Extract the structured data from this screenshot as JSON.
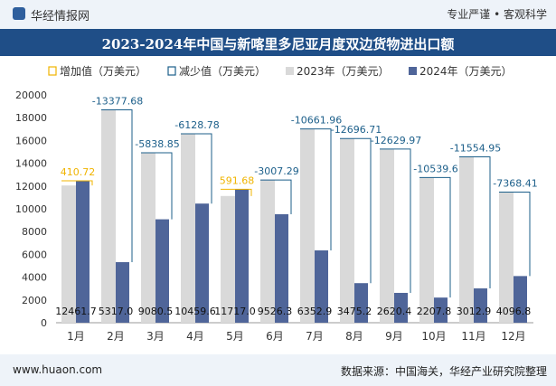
{
  "header": {
    "brand": "华经情报网",
    "tagline": "专业严谨 • 客观科学"
  },
  "footer": {
    "website": "www.huaon.com",
    "source": "数据来源：中国海关，华经产业研究院整理"
  },
  "colors": {
    "bar_2023": "#d9d9d9",
    "bar_2024": "#4f6599",
    "increase": "#f0b400",
    "decrease": "#1c5f8a",
    "title_bg": "#1f4e87"
  },
  "chart_data": {
    "type": "bar",
    "title": "2023-2024年中国与新喀里多尼亚月度双边货物进出口额",
    "xlabel": "",
    "ylabel": "",
    "ylim": [
      0,
      20000
    ],
    "yticks": [
      0,
      2000,
      4000,
      6000,
      8000,
      10000,
      12000,
      14000,
      16000,
      18000,
      20000
    ],
    "legend_position": "top",
    "legend": [
      "增加值（万美元）",
      "减少值（万美元）",
      "2023年（万美元）",
      "2024年（万美元）"
    ],
    "categories": [
      "1月",
      "2月",
      "3月",
      "4月",
      "5月",
      "6月",
      "7月",
      "8月",
      "9月",
      "10月",
      "11月",
      "12月"
    ],
    "series": [
      {
        "name": "2023年（万美元）",
        "values": [
          12051.0,
          18694.7,
          14919.4,
          16588.4,
          11125.4,
          12533.6,
          17014.9,
          16172.0,
          15250.4,
          12747.5,
          14567.9,
          11465.2
        ]
      },
      {
        "name": "2024年（万美元）",
        "values": [
          12461.7,
          5317.0,
          9080.5,
          10459.6,
          11717.0,
          9526.3,
          6352.9,
          3475.2,
          2620.4,
          2207.8,
          3012.9,
          4096.8
        ]
      }
    ],
    "bar_labels_2024": [
      "12461.7",
      "5317.0",
      "9080.5",
      "10459.6",
      "11717.0",
      "9526.3",
      "6352.9",
      "3475.2",
      "2620.4",
      "2207.8",
      "3012.9",
      "4096.8"
    ],
    "changes": [
      410.72,
      -13377.68,
      -5838.85,
      -6128.78,
      591.68,
      -3007.29,
      -10661.96,
      -12696.71,
      -12629.97,
      -10539.6,
      -11554.95,
      -7368.41
    ],
    "change_labels": [
      "410.72",
      "-13377.68",
      "-5838.85",
      "-6128.78",
      "591.68",
      "-3007.29",
      "-10661.96",
      "-12696.71",
      "-12629.97",
      "-10539.6",
      "-11554.95",
      "-7368.41"
    ]
  }
}
